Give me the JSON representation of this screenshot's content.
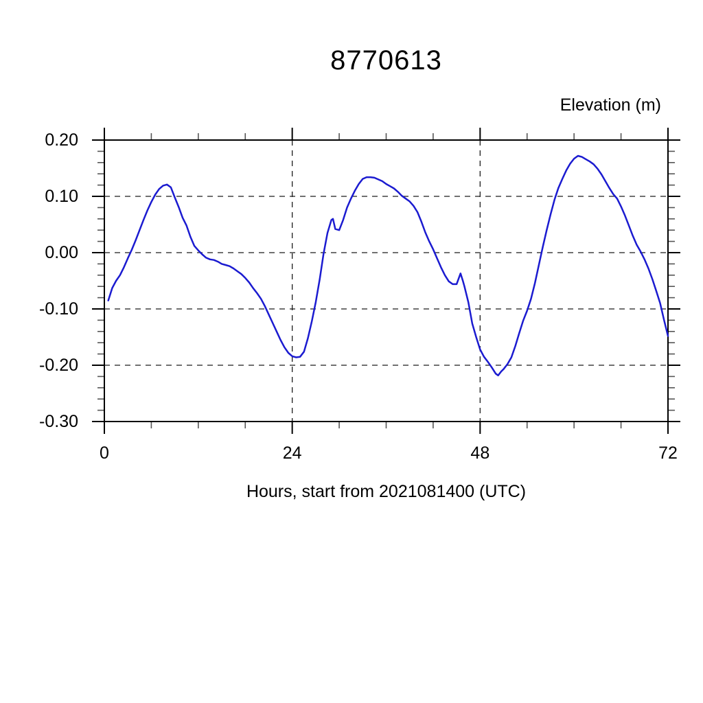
{
  "page": {
    "background": "#ffffff"
  },
  "header": {
    "title": "8770613"
  },
  "colors": {
    "line": "#1b1bd0",
    "axis": "#000000",
    "grid": "#1a1a1a",
    "major_tick": "#000000",
    "minor_tick": "#555555",
    "text": "#000000"
  },
  "chart_data": {
    "type": "line",
    "title": "8770613",
    "xlabel": "Hours, start from 2021081400 (UTC)",
    "ylabel": "Elevation (m)",
    "xlim": [
      0,
      72
    ],
    "ylim": [
      -0.3,
      0.2
    ],
    "x_major_ticks": [
      0,
      24,
      48,
      72
    ],
    "x_minor_tick_step": 6,
    "y_major_ticks": [
      0.2,
      0.1,
      0.0,
      -0.1,
      -0.2,
      -0.3
    ],
    "y_minor_tick_step": 0.02,
    "x_tick_labels": [
      "0",
      "24",
      "48",
      "72"
    ],
    "y_tick_labels": [
      "0.20",
      "0.10",
      "0.00",
      "-0.10",
      "-0.20",
      "-0.30"
    ],
    "grid": {
      "style": "dashed",
      "horizontal_on_majors": true,
      "vertical_on_majors": true
    },
    "legend": "none",
    "series": [
      {
        "name": "elevation",
        "color": "#1b1bd0",
        "points": [
          [
            0.5,
            -0.085
          ],
          [
            1,
            -0.063
          ],
          [
            1.5,
            -0.05
          ],
          [
            2,
            -0.04
          ],
          [
            2.5,
            -0.026
          ],
          [
            3,
            -0.01
          ],
          [
            3.5,
            0.005
          ],
          [
            4,
            0.022
          ],
          [
            4.5,
            0.04
          ],
          [
            5,
            0.058
          ],
          [
            5.5,
            0.075
          ],
          [
            6,
            0.09
          ],
          [
            6.5,
            0.103
          ],
          [
            7,
            0.113
          ],
          [
            7.5,
            0.119
          ],
          [
            8,
            0.121
          ],
          [
            8.5,
            0.116
          ],
          [
            9,
            0.098
          ],
          [
            9.5,
            0.081
          ],
          [
            10,
            0.062
          ],
          [
            10.5,
            0.048
          ],
          [
            11,
            0.028
          ],
          [
            11.5,
            0.012
          ],
          [
            12,
            0.004
          ],
          [
            12.5,
            -0.003
          ],
          [
            13,
            -0.009
          ],
          [
            13.5,
            -0.012
          ],
          [
            14,
            -0.013
          ],
          [
            14.5,
            -0.016
          ],
          [
            15,
            -0.02
          ],
          [
            15.5,
            -0.022
          ],
          [
            16,
            -0.024
          ],
          [
            16.5,
            -0.028
          ],
          [
            17,
            -0.033
          ],
          [
            17.5,
            -0.038
          ],
          [
            18,
            -0.045
          ],
          [
            18.5,
            -0.053
          ],
          [
            19,
            -0.063
          ],
          [
            19.5,
            -0.072
          ],
          [
            20,
            -0.082
          ],
          [
            20.5,
            -0.095
          ],
          [
            21,
            -0.11
          ],
          [
            21.5,
            -0.125
          ],
          [
            22,
            -0.14
          ],
          [
            22.5,
            -0.155
          ],
          [
            23,
            -0.168
          ],
          [
            23.5,
            -0.178
          ],
          [
            24,
            -0.184
          ],
          [
            24.5,
            -0.186
          ],
          [
            25,
            -0.185
          ],
          [
            25.5,
            -0.176
          ],
          [
            26,
            -0.152
          ],
          [
            26.5,
            -0.122
          ],
          [
            27,
            -0.088
          ],
          [
            27.5,
            -0.048
          ],
          [
            28,
            -0.002
          ],
          [
            28.5,
            0.035
          ],
          [
            29,
            0.058
          ],
          [
            29.2,
            0.06
          ],
          [
            29.5,
            0.042
          ],
          [
            30,
            0.04
          ],
          [
            30.5,
            0.058
          ],
          [
            31,
            0.08
          ],
          [
            31.5,
            0.096
          ],
          [
            32,
            0.11
          ],
          [
            32.5,
            0.122
          ],
          [
            33,
            0.131
          ],
          [
            33.5,
            0.134
          ],
          [
            34,
            0.134
          ],
          [
            34.5,
            0.133
          ],
          [
            35,
            0.13
          ],
          [
            35.5,
            0.127
          ],
          [
            36,
            0.122
          ],
          [
            36.5,
            0.118
          ],
          [
            37,
            0.114
          ],
          [
            37.5,
            0.108
          ],
          [
            38,
            0.101
          ],
          [
            38.5,
            0.096
          ],
          [
            39,
            0.091
          ],
          [
            39.5,
            0.083
          ],
          [
            40,
            0.072
          ],
          [
            40.5,
            0.055
          ],
          [
            41,
            0.036
          ],
          [
            41.5,
            0.02
          ],
          [
            42,
            0.006
          ],
          [
            42.5,
            -0.01
          ],
          [
            43,
            -0.026
          ],
          [
            43.5,
            -0.04
          ],
          [
            44,
            -0.051
          ],
          [
            44.5,
            -0.056
          ],
          [
            45,
            -0.056
          ],
          [
            45.5,
            -0.037
          ],
          [
            45.8,
            -0.05
          ],
          [
            46,
            -0.06
          ],
          [
            46.5,
            -0.088
          ],
          [
            47,
            -0.126
          ],
          [
            47.5,
            -0.15
          ],
          [
            48,
            -0.172
          ],
          [
            48.5,
            -0.185
          ],
          [
            49,
            -0.194
          ],
          [
            49.5,
            -0.204
          ],
          [
            50,
            -0.215
          ],
          [
            50.3,
            -0.218
          ],
          [
            50.7,
            -0.211
          ],
          [
            51,
            -0.207
          ],
          [
            51.5,
            -0.198
          ],
          [
            52,
            -0.186
          ],
          [
            52.5,
            -0.166
          ],
          [
            53,
            -0.143
          ],
          [
            53.5,
            -0.121
          ],
          [
            54,
            -0.103
          ],
          [
            54.5,
            -0.082
          ],
          [
            55,
            -0.054
          ],
          [
            55.5,
            -0.022
          ],
          [
            56,
            0.01
          ],
          [
            56.5,
            0.04
          ],
          [
            57,
            0.068
          ],
          [
            57.5,
            0.094
          ],
          [
            58,
            0.115
          ],
          [
            58.5,
            0.131
          ],
          [
            59,
            0.146
          ],
          [
            59.5,
            0.158
          ],
          [
            60,
            0.167
          ],
          [
            60.5,
            0.172
          ],
          [
            61,
            0.17
          ],
          [
            61.5,
            0.166
          ],
          [
            62,
            0.162
          ],
          [
            62.5,
            0.157
          ],
          [
            63,
            0.149
          ],
          [
            63.5,
            0.139
          ],
          [
            64,
            0.127
          ],
          [
            64.5,
            0.115
          ],
          [
            65,
            0.104
          ],
          [
            65.5,
            0.096
          ],
          [
            66,
            0.082
          ],
          [
            66.5,
            0.066
          ],
          [
            67,
            0.048
          ],
          [
            67.5,
            0.03
          ],
          [
            68,
            0.014
          ],
          [
            68.5,
            0.002
          ],
          [
            69,
            -0.012
          ],
          [
            69.5,
            -0.028
          ],
          [
            70,
            -0.047
          ],
          [
            70.5,
            -0.068
          ],
          [
            71,
            -0.09
          ],
          [
            71.5,
            -0.12
          ],
          [
            72,
            -0.148
          ]
        ]
      }
    ]
  }
}
